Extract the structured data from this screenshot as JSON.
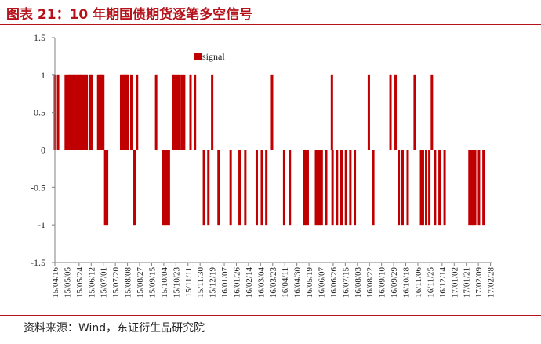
{
  "figure": {
    "title": "图表 21：10 年期国债期货逐笔多空信号",
    "source": "资料来源：Wind，东证衍生品研究院"
  },
  "colors": {
    "series": "#c00000",
    "axis": "#808080",
    "zero_line": "#c8c8c8",
    "title": "#b5121b"
  },
  "chart_data": {
    "type": "bar",
    "series": [
      {
        "name": "signal",
        "color": "#c00000"
      }
    ],
    "legend_position": "top-left-inside",
    "grid": false,
    "ylim": [
      -1.5,
      1.5
    ],
    "yticks": [
      "1.5",
      "1",
      "0.5",
      "0",
      "-0.5",
      "-1",
      "-1.5"
    ],
    "ytick_values": [
      1.5,
      1,
      0.5,
      0,
      -0.5,
      -1,
      -1.5
    ],
    "xticks": [
      "15/04/16",
      "15/05/05",
      "15/05/24",
      "15/06/12",
      "15/07/01",
      "15/07/20",
      "15/08/08",
      "15/08/27",
      "15/09/15",
      "15/10/04",
      "15/10/23",
      "15/11/11",
      "15/11/30",
      "15/12/19",
      "16/01/07",
      "16/01/26",
      "16/02/14",
      "16/03/04",
      "16/03/23",
      "16/04/11",
      "16/04/30",
      "16/05/19",
      "16/06/07",
      "16/06/26",
      "16/07/15",
      "16/08/03",
      "16/08/22",
      "16/09/10",
      "16/09/29",
      "16/10/18",
      "16/11/06",
      "16/11/25",
      "16/12/14",
      "17/01/02",
      "17/01/21",
      "17/02/09",
      "17/02/28"
    ],
    "x_start": "2015-04-16",
    "x_end": "2017-03-03",
    "signals": [
      [
        "2015-04-16",
        1
      ],
      [
        "2015-04-21",
        1
      ],
      [
        "2015-05-03",
        1
      ],
      [
        "2015-05-07",
        1
      ],
      [
        "2015-05-09",
        1
      ],
      [
        "2015-05-11",
        1
      ],
      [
        "2015-05-14",
        1
      ],
      [
        "2015-05-16",
        1
      ],
      [
        "2015-05-18",
        1
      ],
      [
        "2015-05-21",
        1
      ],
      [
        "2015-05-23",
        1
      ],
      [
        "2015-05-25",
        1
      ],
      [
        "2015-05-27",
        1
      ],
      [
        "2015-05-29",
        1
      ],
      [
        "2015-06-01",
        1
      ],
      [
        "2015-06-03",
        1
      ],
      [
        "2015-06-05",
        1
      ],
      [
        "2015-06-11",
        1
      ],
      [
        "2015-06-13",
        1
      ],
      [
        "2015-06-23",
        1
      ],
      [
        "2015-06-25",
        1
      ],
      [
        "2015-06-27",
        1
      ],
      [
        "2015-06-29",
        1
      ],
      [
        "2015-07-01",
        1
      ],
      [
        "2015-07-04",
        -1
      ],
      [
        "2015-07-07",
        -1
      ],
      [
        "2015-07-29",
        1
      ],
      [
        "2015-07-31",
        1
      ],
      [
        "2015-08-02",
        1
      ],
      [
        "2015-08-04",
        1
      ],
      [
        "2015-08-06",
        1
      ],
      [
        "2015-08-08",
        1
      ],
      [
        "2015-08-14",
        1
      ],
      [
        "2015-08-19",
        -1
      ],
      [
        "2015-08-23",
        1
      ],
      [
        "2015-09-22",
        1
      ],
      [
        "2015-10-03",
        -1
      ],
      [
        "2015-10-06",
        -1
      ],
      [
        "2015-10-09",
        -1
      ],
      [
        "2015-10-12",
        -1
      ],
      [
        "2015-10-19",
        1
      ],
      [
        "2015-10-22",
        1
      ],
      [
        "2015-10-25",
        1
      ],
      [
        "2015-10-28",
        1
      ],
      [
        "2015-11-01",
        1
      ],
      [
        "2015-11-05",
        1
      ],
      [
        "2015-11-15",
        1
      ],
      [
        "2015-11-22",
        1
      ],
      [
        "2015-12-06",
        -1
      ],
      [
        "2015-12-13",
        -1
      ],
      [
        "2015-12-19",
        1
      ],
      [
        "2015-12-29",
        -1
      ],
      [
        "2016-01-17",
        -1
      ],
      [
        "2016-01-31",
        -1
      ],
      [
        "2016-02-09",
        -1
      ],
      [
        "2016-02-27",
        -1
      ],
      [
        "2016-03-06",
        -1
      ],
      [
        "2016-03-13",
        -1
      ],
      [
        "2016-03-22",
        1
      ],
      [
        "2016-04-10",
        -1
      ],
      [
        "2016-04-19",
        -1
      ],
      [
        "2016-05-12",
        -1
      ],
      [
        "2016-05-15",
        -1
      ],
      [
        "2016-05-17",
        -1
      ],
      [
        "2016-05-30",
        -1
      ],
      [
        "2016-06-02",
        -1
      ],
      [
        "2016-06-05",
        -1
      ],
      [
        "2016-06-08",
        -1
      ],
      [
        "2016-06-15",
        -1
      ],
      [
        "2016-06-24",
        1
      ],
      [
        "2016-06-25",
        -1
      ],
      [
        "2016-07-02",
        -1
      ],
      [
        "2016-07-09",
        -1
      ],
      [
        "2016-07-16",
        -1
      ],
      [
        "2016-07-23",
        -1
      ],
      [
        "2016-07-30",
        -1
      ],
      [
        "2016-08-21",
        1
      ],
      [
        "2016-08-28",
        -1
      ],
      [
        "2016-09-24",
        1
      ],
      [
        "2016-10-02",
        1
      ],
      [
        "2016-10-07",
        -1
      ],
      [
        "2016-10-13",
        -1
      ],
      [
        "2016-10-21",
        -1
      ],
      [
        "2016-11-01",
        1
      ],
      [
        "2016-11-11",
        -1
      ],
      [
        "2016-11-14",
        -1
      ],
      [
        "2016-11-19",
        -1
      ],
      [
        "2016-11-24",
        -1
      ],
      [
        "2016-11-28",
        1
      ],
      [
        "2016-12-03",
        -1
      ],
      [
        "2016-12-10",
        -1
      ],
      [
        "2016-12-18",
        -1
      ],
      [
        "2017-01-26",
        -1
      ],
      [
        "2017-01-29",
        -1
      ],
      [
        "2017-02-01",
        -1
      ],
      [
        "2017-02-04",
        -1
      ],
      [
        "2017-02-10",
        -1
      ],
      [
        "2017-02-17",
        -1
      ]
    ]
  }
}
